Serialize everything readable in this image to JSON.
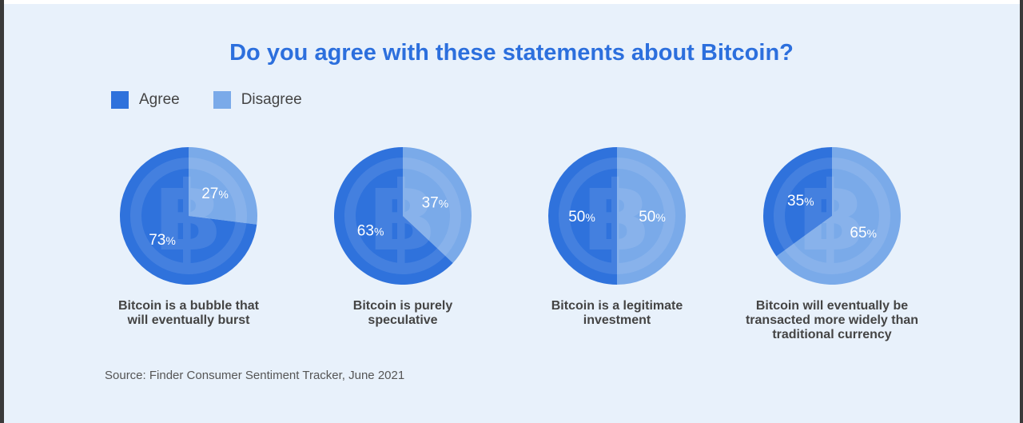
{
  "colors": {
    "agree": "#2f72dc",
    "disagree": "#7aaae9",
    "title": "#2c6fdd",
    "background": "#e8f1fb",
    "text": "#444444"
  },
  "chart_data": {
    "type": "pie",
    "title": "Do you agree with these statements about Bitcoin?",
    "legend": [
      "Agree",
      "Disagree"
    ],
    "legend_position": "top-left",
    "charts": [
      {
        "caption": "Bitcoin is a bubble that will eventually burst",
        "agree": 73,
        "disagree": 27
      },
      {
        "caption": "Bitcoin is purely speculative",
        "agree": 63,
        "disagree": 37
      },
      {
        "caption": "Bitcoin is a legitimate investment",
        "agree": 50,
        "disagree": 50
      },
      {
        "caption": "Bitcoin will eventually be transacted more widely than traditional currency",
        "agree": 35,
        "disagree": 65
      }
    ],
    "source": "Source: Finder Consumer Sentiment Tracker, June 2021"
  }
}
